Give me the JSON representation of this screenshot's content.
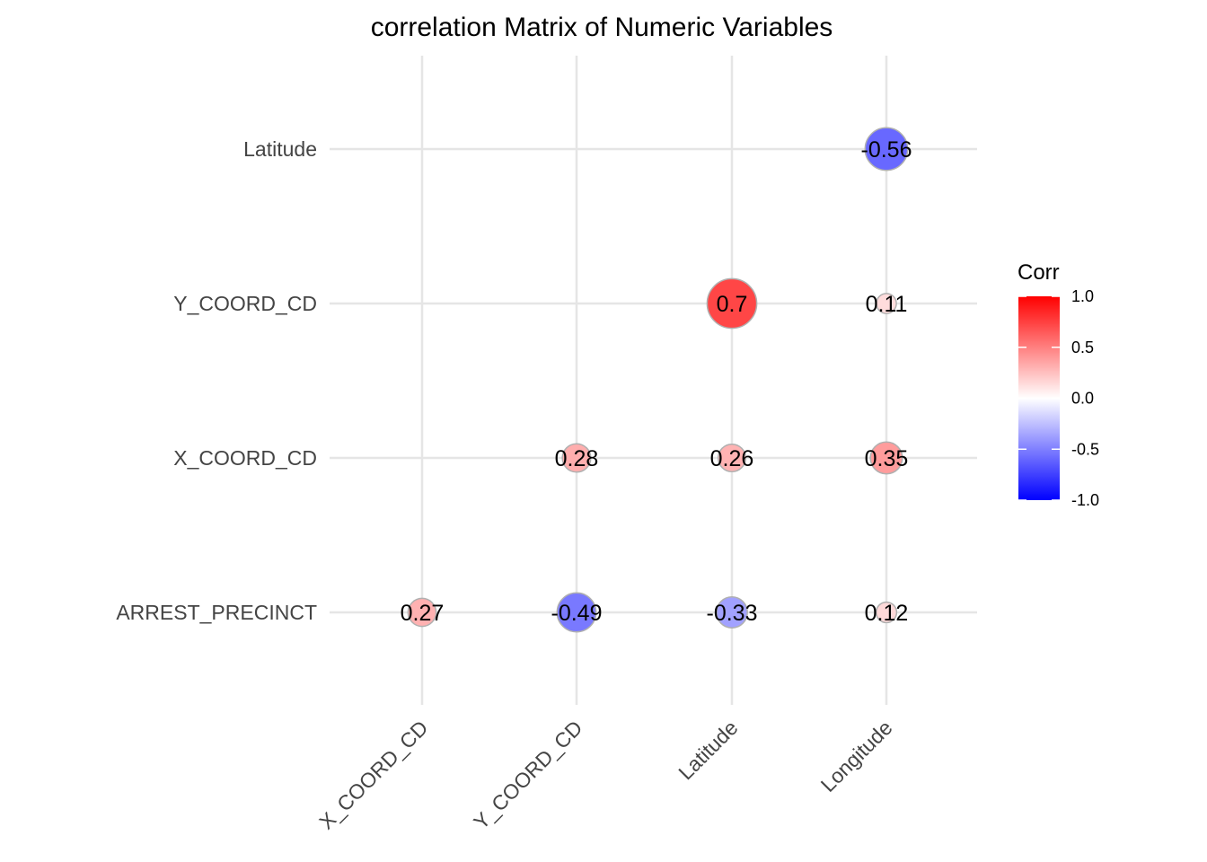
{
  "chart_data": {
    "type": "scatter",
    "title": "correlation Matrix of Numeric Variables",
    "x_categories": [
      "X_COORD_CD",
      "Y_COORD_CD",
      "Latitude",
      "Longitude"
    ],
    "y_categories": [
      "ARREST_PRECINCT",
      "X_COORD_CD",
      "Y_COORD_CD",
      "Latitude"
    ],
    "cells": [
      {
        "x": "Longitude",
        "y": "Latitude",
        "value": -0.56,
        "label": "-0.56"
      },
      {
        "x": "Latitude",
        "y": "Y_COORD_CD",
        "value": 0.7,
        "label": "0.7"
      },
      {
        "x": "Longitude",
        "y": "Y_COORD_CD",
        "value": 0.11,
        "label": "0.11"
      },
      {
        "x": "Y_COORD_CD",
        "y": "X_COORD_CD",
        "value": 0.28,
        "label": "0.28"
      },
      {
        "x": "Latitude",
        "y": "X_COORD_CD",
        "value": 0.26,
        "label": "0.26"
      },
      {
        "x": "Longitude",
        "y": "X_COORD_CD",
        "value": 0.35,
        "label": "0.35"
      },
      {
        "x": "X_COORD_CD",
        "y": "ARREST_PRECINCT",
        "value": 0.27,
        "label": "0.27"
      },
      {
        "x": "Y_COORD_CD",
        "y": "ARREST_PRECINCT",
        "value": -0.49,
        "label": "-0.49"
      },
      {
        "x": "Latitude",
        "y": "ARREST_PRECINCT",
        "value": -0.33,
        "label": "-0.33"
      },
      {
        "x": "Longitude",
        "y": "ARREST_PRECINCT",
        "value": 0.12,
        "label": "0.12"
      }
    ],
    "legend": {
      "title": "Corr",
      "position": "right",
      "ticks": [
        "1.0",
        "0.5",
        "0.0",
        "-0.5",
        "-1.0"
      ],
      "range": [
        -1,
        1
      ],
      "colors": {
        "low": "#0000FF",
        "mid": "#FFFFFF",
        "high": "#FF0000"
      }
    },
    "grid": true,
    "size_encodes": "absolute value of correlation"
  }
}
